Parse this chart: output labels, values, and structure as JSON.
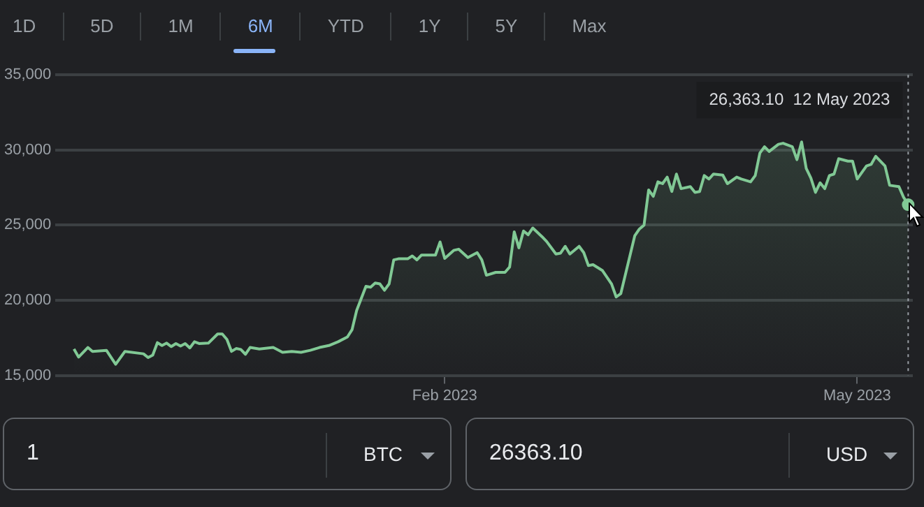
{
  "chart_data": {
    "type": "area",
    "color": "#81c995",
    "x": [
      "2022-11-13",
      "2022-11-14",
      "2022-11-16",
      "2022-11-17",
      "2022-11-20",
      "2022-11-22",
      "2022-11-24",
      "2022-11-28",
      "2022-11-29",
      "2022-11-30",
      "2022-12-01",
      "2022-12-02",
      "2022-12-03",
      "2022-12-04",
      "2022-12-05",
      "2022-12-06",
      "2022-12-07",
      "2022-12-08",
      "2022-12-09",
      "2022-12-10",
      "2022-12-12",
      "2022-12-14",
      "2022-12-15",
      "2022-12-16",
      "2022-12-17",
      "2022-12-18",
      "2022-12-19",
      "2022-12-20",
      "2022-12-21",
      "2022-12-23",
      "2022-12-26",
      "2022-12-28",
      "2022-12-30",
      "2023-01-01",
      "2023-01-03",
      "2023-01-05",
      "2023-01-07",
      "2023-01-09",
      "2023-01-11",
      "2023-01-12",
      "2023-01-13",
      "2023-01-15",
      "2023-01-16",
      "2023-01-17",
      "2023-01-18",
      "2023-01-19",
      "2023-01-20",
      "2023-01-21",
      "2023-01-22",
      "2023-01-24",
      "2023-01-25",
      "2023-01-26",
      "2023-01-27",
      "2023-01-30",
      "2023-01-31",
      "2023-02-01",
      "2023-02-03",
      "2023-02-04",
      "2023-02-06",
      "2023-02-08",
      "2023-02-09",
      "2023-02-10",
      "2023-02-12",
      "2023-02-14",
      "2023-02-15",
      "2023-02-16",
      "2023-02-17",
      "2023-02-18",
      "2023-02-19",
      "2023-02-20",
      "2023-02-22",
      "2023-02-23",
      "2023-02-25",
      "2023-02-26",
      "2023-02-27",
      "2023-02-28",
      "2023-03-02",
      "2023-03-03",
      "2023-03-04",
      "2023-03-05",
      "2023-03-07",
      "2023-03-09",
      "2023-03-10",
      "2023-03-11",
      "2023-03-12",
      "2023-03-14",
      "2023-03-15",
      "2023-03-16",
      "2023-03-17",
      "2023-03-18",
      "2023-03-19",
      "2023-03-20",
      "2023-03-21",
      "2023-03-22",
      "2023-03-23",
      "2023-03-24",
      "2023-03-26",
      "2023-03-27",
      "2023-03-28",
      "2023-03-29",
      "2023-03-30",
      "2023-03-31",
      "2023-04-02",
      "2023-04-03",
      "2023-04-05",
      "2023-04-06",
      "2023-04-08",
      "2023-04-09",
      "2023-04-10",
      "2023-04-11",
      "2023-04-12",
      "2023-04-14",
      "2023-04-15",
      "2023-04-17",
      "2023-04-18",
      "2023-04-19",
      "2023-04-20",
      "2023-04-21",
      "2023-04-22",
      "2023-04-23",
      "2023-04-24",
      "2023-04-25",
      "2023-04-26",
      "2023-04-27",
      "2023-04-29",
      "2023-04-30",
      "2023-05-01",
      "2023-05-03",
      "2023-05-04",
      "2023-05-05",
      "2023-05-07",
      "2023-05-08",
      "2023-05-10",
      "2023-05-11",
      "2023-05-12"
    ],
    "values": [
      16760,
      16220,
      16860,
      16600,
      16670,
      15740,
      16600,
      16440,
      16190,
      16350,
      17180,
      16990,
      17150,
      16920,
      17120,
      16960,
      17120,
      16830,
      17240,
      17120,
      17150,
      17760,
      17760,
      17400,
      16600,
      16790,
      16730,
      16410,
      16860,
      16760,
      16860,
      16540,
      16600,
      16540,
      16670,
      16860,
      16990,
      17240,
      17560,
      18040,
      19330,
      20930,
      20870,
      21150,
      21090,
      20670,
      21090,
      22690,
      22760,
      22760,
      22950,
      22690,
      23010,
      23010,
      23880,
      22790,
      23330,
      23400,
      22850,
      23170,
      22690,
      21670,
      21860,
      21860,
      22210,
      24550,
      23490,
      24610,
      24360,
      24810,
      24230,
      23910,
      23080,
      23140,
      23590,
      23080,
      23590,
      23170,
      22310,
      22370,
      21990,
      21090,
      20220,
      20450,
      21730,
      24290,
      24740,
      25000,
      27340,
      26920,
      27880,
      27760,
      28200,
      27240,
      28400,
      27430,
      27560,
      27180,
      27240,
      28300,
      28070,
      28400,
      28330,
      27760,
      28200,
      28070,
      27880,
      28300,
      29800,
      30220,
      29900,
      30380,
      30450,
      30220,
      29360,
      30540,
      28780,
      28140,
      27180,
      27820,
      27430,
      28300,
      28400,
      29420,
      29260,
      29260,
      28070,
      28940,
      29040,
      29580,
      28940,
      27650,
      27560,
      26860,
      26363.1
    ],
    "xlim": [
      "2022-11-09",
      "2023-05-13"
    ],
    "xticks": [
      {
        "value": "2023-02-01",
        "label": "Feb 2023"
      },
      {
        "value": "2023-05-01",
        "label": "May 2023"
      }
    ],
    "ylim": [
      15000,
      35000
    ],
    "yticks": [
      {
        "value": 15000,
        "label": "15,000"
      },
      {
        "value": 20000,
        "label": "20,000"
      },
      {
        "value": 25000,
        "label": "25,000"
      },
      {
        "value": 30000,
        "label": "30,000"
      },
      {
        "value": 35000,
        "label": "35,000"
      }
    ],
    "grid": "y",
    "ref_lines": [
      {
        "axis": "x",
        "value": "2023-05-12",
        "line_style": "dotted",
        "color": "#9aa0a6"
      }
    ],
    "annotations": [
      "26,363.10  12 May 2023",
      "1D",
      "5D",
      "1M",
      "6M",
      "YTD",
      "1Y",
      "5Y",
      "Max",
      "1",
      "BTC",
      "26363.10",
      "USD"
    ]
  }
}
